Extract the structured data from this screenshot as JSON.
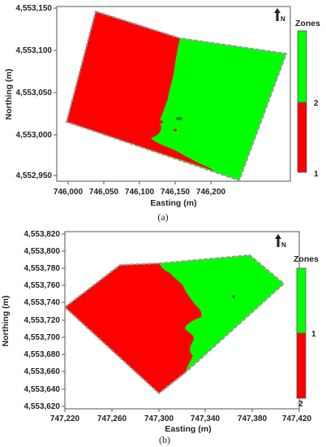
{
  "colors": {
    "zone_red": "#ff0000",
    "zone_green": "#00ff00",
    "boundary": "#9a9a9a",
    "frame": "#555555"
  },
  "panels": [
    {
      "id": "a",
      "caption": "(a)",
      "xlabel": "Easting (m)",
      "ylabel": "Northing (m)",
      "x_ticks": [
        "746,000",
        "746,050",
        "746,100",
        "746,150",
        "746,200"
      ],
      "y_ticks": [
        "4,553,150",
        "4,553,100",
        "4,553,050",
        "4,553,000",
        "4,552,950"
      ],
      "legend_title": "Zones",
      "legend_labels": [
        "2",
        "1"
      ],
      "north_icon": "north-arrow-icon",
      "north_label": "N"
    },
    {
      "id": "b",
      "caption": "(b)",
      "xlabel": "Easting (m)",
      "ylabel": "Northing (m)",
      "x_ticks": [
        "747,220",
        "747,260",
        "747,300",
        "747,340",
        "747,380",
        "747,420"
      ],
      "y_ticks": [
        "4,553,820",
        "4,553,800",
        "4,553,780",
        "4,553,760",
        "4,553,740",
        "4,553,720",
        "4,553,700",
        "4,553,680",
        "4,553,660",
        "4,553,640",
        "4,553,620"
      ],
      "legend_title": "Zones",
      "legend_labels": [
        "1",
        "2"
      ],
      "north_icon": "north-arrow-icon",
      "north_label": "N"
    }
  ]
}
